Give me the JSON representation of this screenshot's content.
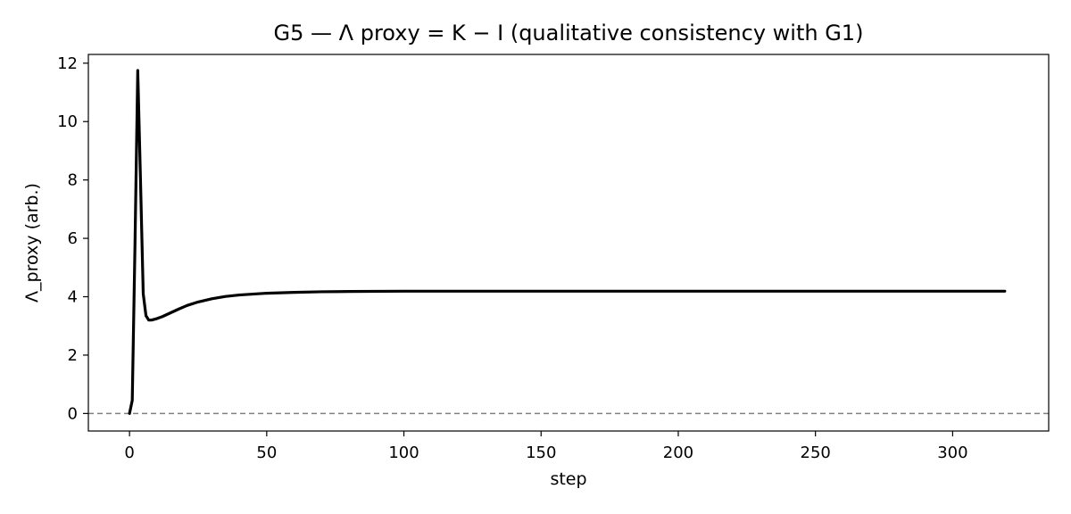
{
  "chart_data": {
    "type": "line",
    "title": "G5 — Λ proxy = K − I (qualitative consistency with G1)",
    "xlabel": "step",
    "ylabel": "Λ_proxy (arb.)",
    "xlim": [
      -15,
      335
    ],
    "ylim": [
      -0.6,
      12.3
    ],
    "xticks": [
      0,
      50,
      100,
      150,
      200,
      250,
      300
    ],
    "yticks": [
      0,
      2,
      4,
      6,
      8,
      10,
      12
    ],
    "grid": false,
    "reference_line": {
      "y": 0,
      "style": "dashed",
      "color": "#808080"
    },
    "series": [
      {
        "color": "#000000",
        "x": [
          0,
          1,
          2,
          3,
          4,
          5,
          6,
          7,
          8,
          10,
          12,
          15,
          18,
          21,
          25,
          30,
          35,
          40,
          50,
          60,
          70,
          80,
          100,
          150,
          200,
          250,
          300,
          319
        ],
        "y": [
          0.0,
          0.45,
          5.8,
          11.75,
          8.0,
          4.1,
          3.35,
          3.2,
          3.2,
          3.25,
          3.32,
          3.45,
          3.58,
          3.7,
          3.82,
          3.93,
          4.01,
          4.06,
          4.12,
          4.15,
          4.17,
          4.18,
          4.19,
          4.19,
          4.19,
          4.19,
          4.19,
          4.19
        ]
      }
    ]
  }
}
